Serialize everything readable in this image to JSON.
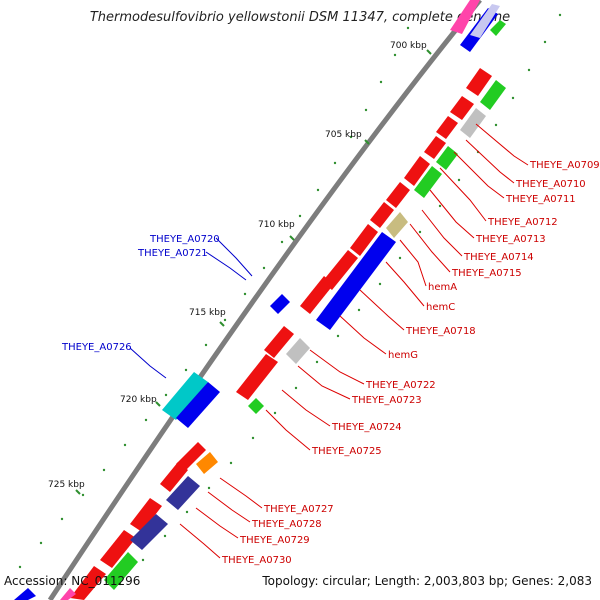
{
  "title": "Thermodesulfovibrio yellowstonii DSM 11347, complete genome",
  "footer": {
    "accession": "Accession: NC_011296",
    "summary": "Topology: circular; Length: 2,003,803 bp; Genes: 2,083"
  },
  "ticks": [
    "700 kbp",
    "705 kbp",
    "710 kbp",
    "715 kbp",
    "720 kbp",
    "725 kbp"
  ],
  "colors": {
    "backbone": "#888888",
    "cds_forward": "#ff0000",
    "cds_reverse": "#0000ff",
    "rna": "#00c000",
    "other": "#cccccc",
    "tick": "#2f8f2f",
    "label_red": "#cc0000",
    "label_blue": "#0000cc"
  },
  "labels_right": [
    "THEYE_A0709",
    "THEYE_A0710",
    "THEYE_A0711",
    "THEYE_A0712",
    "THEYE_A0713",
    "THEYE_A0714",
    "THEYE_A0715",
    "hemA",
    "hemC",
    "THEYE_A0718",
    "hemG",
    "THEYE_A0722",
    "THEYE_A0723",
    "THEYE_A0724",
    "THEYE_A0725",
    "THEYE_A0727",
    "THEYE_A0728",
    "THEYE_A0729",
    "THEYE_A0730"
  ],
  "labels_left": [
    "THEYE_A0720",
    "THEYE_A0721",
    "THEYE_A0726"
  ]
}
